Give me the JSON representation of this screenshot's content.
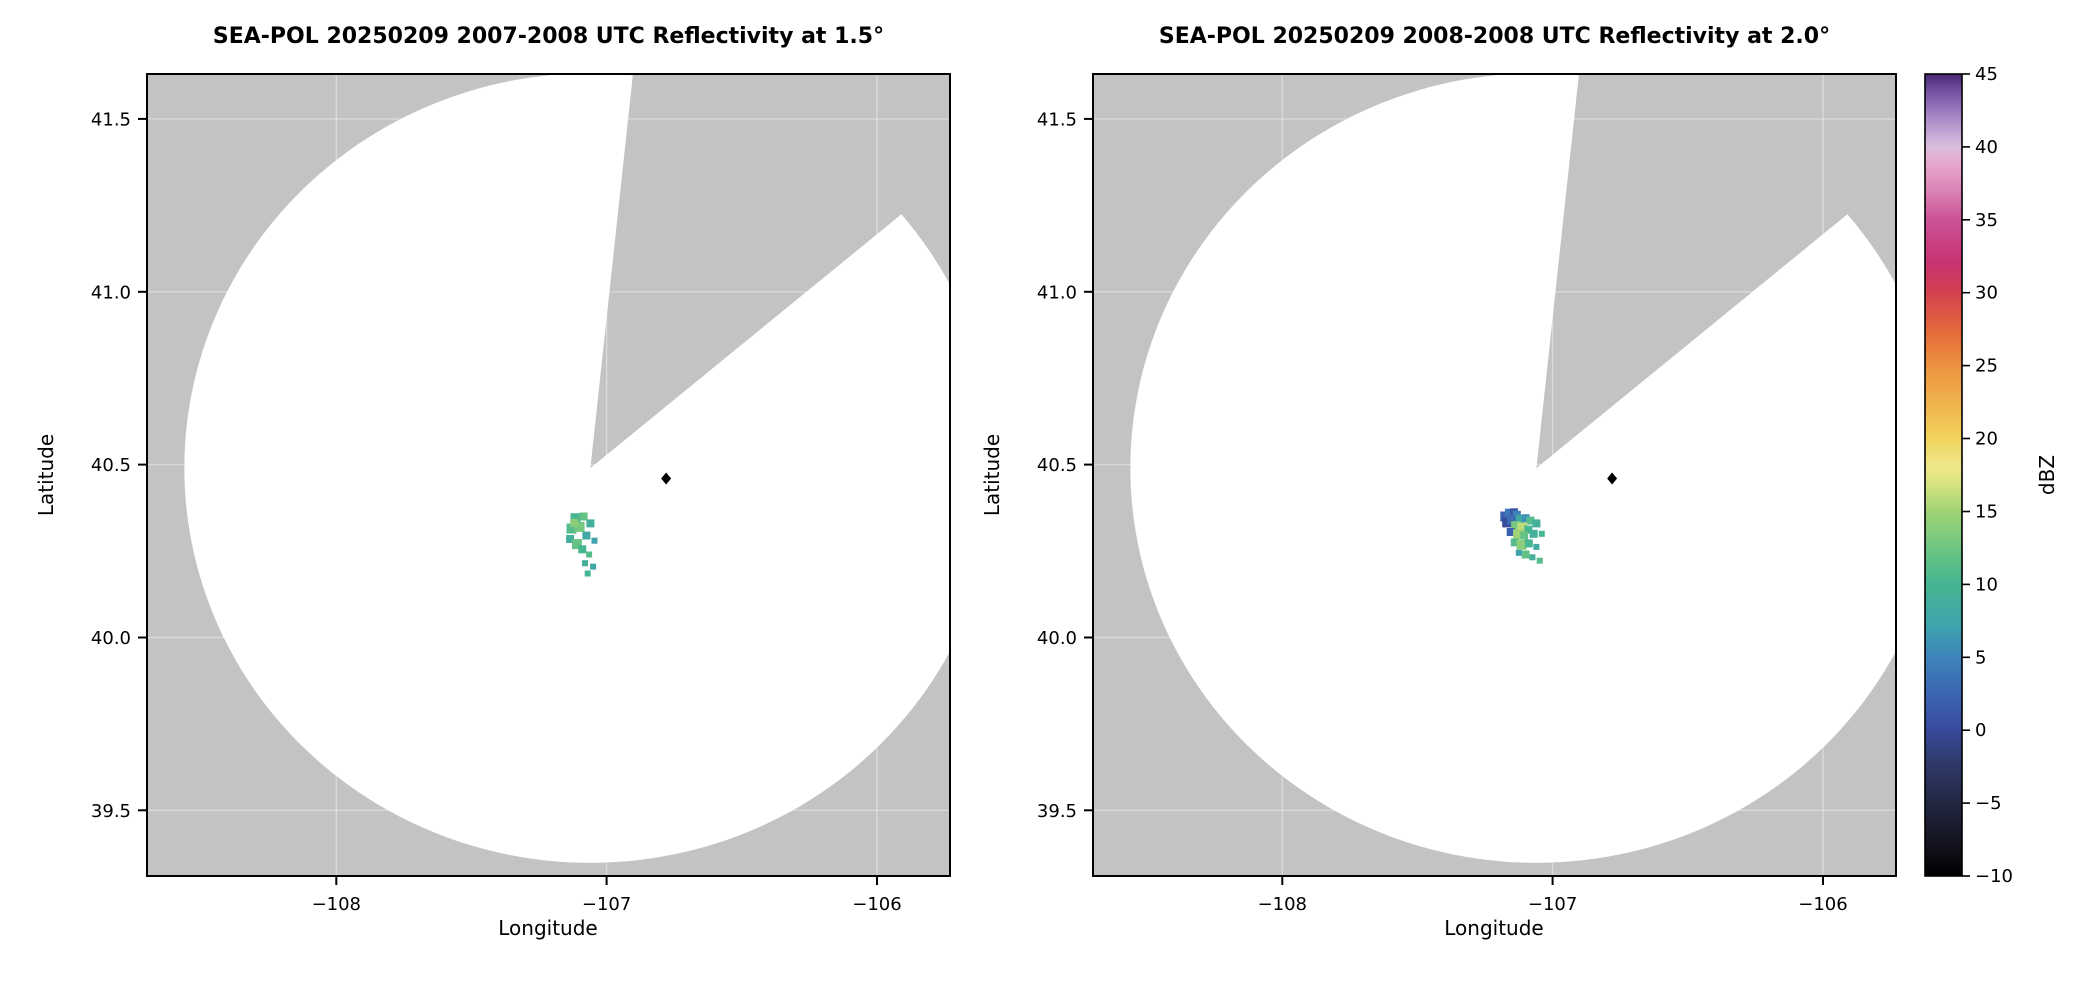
{
  "figure": {
    "plot_bg_gray": "#c3c3c3",
    "coverage_white": "#ffffff",
    "grid_color": "rgba(255,255,255,0.38)"
  },
  "chart_data": [
    {
      "type": "radar_ppi",
      "title": "SEA-POL 20250209 2007-2008 UTC Reflectivity at 1.5°",
      "xlabel": "Longitude",
      "ylabel": "Latitude",
      "elevation_deg": 1.5,
      "xlim": [
        -108.7,
        -105.73
      ],
      "ylim": [
        39.31,
        41.63
      ],
      "xticks": {
        "values": [
          -108,
          -107,
          -106
        ],
        "labels": [
          "−108",
          "−107",
          "−106"
        ]
      },
      "yticks": {
        "values": [
          39.5,
          40.0,
          40.5,
          41.0,
          41.5
        ],
        "labels": [
          "39.5",
          "40.0",
          "40.5",
          "41.0",
          "41.5"
        ]
      },
      "radar": {
        "lon": -107.06,
        "lat": 40.49,
        "range_km": 127,
        "blocked_sector_az_deg": [
          6,
          50
        ]
      },
      "site_marker": {
        "lon": -106.78,
        "lat": 40.46
      },
      "echoes": [
        {
          "lon": -107.115,
          "lat": 40.345,
          "dbz": 10,
          "s": 5
        },
        {
          "lon": -107.085,
          "lat": 40.35,
          "dbz": 12,
          "s": 4
        },
        {
          "lon": -107.06,
          "lat": 40.33,
          "dbz": 9,
          "s": 4
        },
        {
          "lon": -107.13,
          "lat": 40.315,
          "dbz": 11,
          "s": 5
        },
        {
          "lon": -107.1,
          "lat": 40.32,
          "dbz": 13,
          "s": 5
        },
        {
          "lon": -107.135,
          "lat": 40.285,
          "dbz": 9,
          "s": 4
        },
        {
          "lon": -107.11,
          "lat": 40.27,
          "dbz": 12,
          "s": 5
        },
        {
          "lon": -107.075,
          "lat": 40.295,
          "dbz": 8,
          "s": 4
        },
        {
          "lon": -107.09,
          "lat": 40.255,
          "dbz": 10,
          "s": 4
        },
        {
          "lon": -107.065,
          "lat": 40.24,
          "dbz": 11,
          "s": 3
        },
        {
          "lon": -107.08,
          "lat": 40.215,
          "dbz": 9,
          "s": 3
        },
        {
          "lon": -107.07,
          "lat": 40.185,
          "dbz": 10,
          "s": 3
        },
        {
          "lon": -107.05,
          "lat": 40.205,
          "dbz": 8,
          "s": 3
        },
        {
          "lon": -107.12,
          "lat": 40.332,
          "dbz": 14,
          "s": 4
        },
        {
          "lon": -107.045,
          "lat": 40.28,
          "dbz": 7,
          "s": 3
        }
      ]
    },
    {
      "type": "radar_ppi",
      "title": "SEA-POL 20250209 2008-2008 UTC Reflectivity at 2.0°",
      "xlabel": "Longitude",
      "ylabel": "Latitude",
      "elevation_deg": 2.0,
      "xlim": [
        -108.7,
        -105.73
      ],
      "ylim": [
        39.31,
        41.63
      ],
      "xticks": {
        "values": [
          -108,
          -107,
          -106
        ],
        "labels": [
          "−108",
          "−107",
          "−106"
        ]
      },
      "yticks": {
        "values": [
          39.5,
          40.0,
          40.5,
          41.0,
          41.5
        ],
        "labels": [
          "39.5",
          "40.0",
          "40.5",
          "41.0",
          "41.5"
        ]
      },
      "radar": {
        "lon": -107.06,
        "lat": 40.49,
        "range_km": 127,
        "blocked_sector_az_deg": [
          6,
          50
        ]
      },
      "site_marker": {
        "lon": -106.78,
        "lat": 40.46
      },
      "echoes": [
        {
          "lon": -107.175,
          "lat": 40.35,
          "dbz": 2,
          "s": 5
        },
        {
          "lon": -107.158,
          "lat": 40.358,
          "dbz": 4,
          "s": 5
        },
        {
          "lon": -107.143,
          "lat": 40.362,
          "dbz": 1,
          "s": 4
        },
        {
          "lon": -107.132,
          "lat": 40.355,
          "dbz": 5,
          "s": 4
        },
        {
          "lon": -107.168,
          "lat": 40.333,
          "dbz": 0,
          "s": 5
        },
        {
          "lon": -107.15,
          "lat": 40.34,
          "dbz": 3,
          "s": 5
        },
        {
          "lon": -107.118,
          "lat": 40.34,
          "dbz": 8,
          "s": 5
        },
        {
          "lon": -107.1,
          "lat": 40.345,
          "dbz": 6,
          "s": 4
        },
        {
          "lon": -107.082,
          "lat": 40.338,
          "dbz": 11,
          "s": 4
        },
        {
          "lon": -107.06,
          "lat": 40.33,
          "dbz": 9,
          "s": 4
        },
        {
          "lon": -107.135,
          "lat": 40.322,
          "dbz": 13,
          "s": 5
        },
        {
          "lon": -107.112,
          "lat": 40.318,
          "dbz": 16,
          "s": 5
        },
        {
          "lon": -107.09,
          "lat": 40.312,
          "dbz": 10,
          "s": 4
        },
        {
          "lon": -107.155,
          "lat": 40.305,
          "dbz": 2,
          "s": 4
        },
        {
          "lon": -107.128,
          "lat": 40.298,
          "dbz": 15,
          "s": 5
        },
        {
          "lon": -107.105,
          "lat": 40.295,
          "dbz": 12,
          "s": 4
        },
        {
          "lon": -107.07,
          "lat": 40.3,
          "dbz": 9,
          "s": 4
        },
        {
          "lon": -107.14,
          "lat": 40.275,
          "dbz": 11,
          "s": 4
        },
        {
          "lon": -107.115,
          "lat": 40.268,
          "dbz": 14,
          "s": 5
        },
        {
          "lon": -107.088,
          "lat": 40.272,
          "dbz": 10,
          "s": 4
        },
        {
          "lon": -107.06,
          "lat": 40.262,
          "dbz": 8,
          "s": 3
        },
        {
          "lon": -107.1,
          "lat": 40.24,
          "dbz": 12,
          "s": 4
        },
        {
          "lon": -107.075,
          "lat": 40.232,
          "dbz": 9,
          "s": 3
        },
        {
          "lon": -107.048,
          "lat": 40.222,
          "dbz": 11,
          "s": 3
        },
        {
          "lon": -107.125,
          "lat": 40.245,
          "dbz": 7,
          "s": 3
        },
        {
          "lon": -107.04,
          "lat": 40.3,
          "dbz": 10,
          "s": 3
        }
      ]
    }
  ],
  "colorbar": {
    "label": "dBZ",
    "min": -10,
    "max": 45,
    "ticks": {
      "values": [
        -10,
        -5,
        0,
        5,
        10,
        15,
        20,
        25,
        30,
        35,
        40,
        45
      ],
      "labels": [
        "−10",
        "−5",
        "0",
        "5",
        "10",
        "15",
        "20",
        "25",
        "30",
        "35",
        "40",
        "45"
      ]
    },
    "stops": [
      {
        "v": -10,
        "c": "#000000"
      },
      {
        "v": -8,
        "c": "#12121c"
      },
      {
        "v": -5,
        "c": "#222741"
      },
      {
        "v": -2,
        "c": "#303b6e"
      },
      {
        "v": 0,
        "c": "#394a9c"
      },
      {
        "v": 2,
        "c": "#3b60ae"
      },
      {
        "v": 5,
        "c": "#3d84bb"
      },
      {
        "v": 7,
        "c": "#3fa2ad"
      },
      {
        "v": 10,
        "c": "#46b592"
      },
      {
        "v": 12,
        "c": "#65c285"
      },
      {
        "v": 15,
        "c": "#a0d376"
      },
      {
        "v": 17,
        "c": "#d9e47f"
      },
      {
        "v": 18,
        "c": "#eee98c"
      },
      {
        "v": 20,
        "c": "#f2d35e"
      },
      {
        "v": 23,
        "c": "#efab49"
      },
      {
        "v": 25,
        "c": "#ec923f"
      },
      {
        "v": 27,
        "c": "#e56f3a"
      },
      {
        "v": 30,
        "c": "#d4414f"
      },
      {
        "v": 32,
        "c": "#c73370"
      },
      {
        "v": 35,
        "c": "#cc5296"
      },
      {
        "v": 37,
        "c": "#dc83b5"
      },
      {
        "v": 39,
        "c": "#e7abce"
      },
      {
        "v": 40,
        "c": "#dabfdd"
      },
      {
        "v": 42,
        "c": "#a98ac7"
      },
      {
        "v": 44,
        "c": "#6e4d9f"
      },
      {
        "v": 45,
        "c": "#46286f"
      }
    ]
  }
}
